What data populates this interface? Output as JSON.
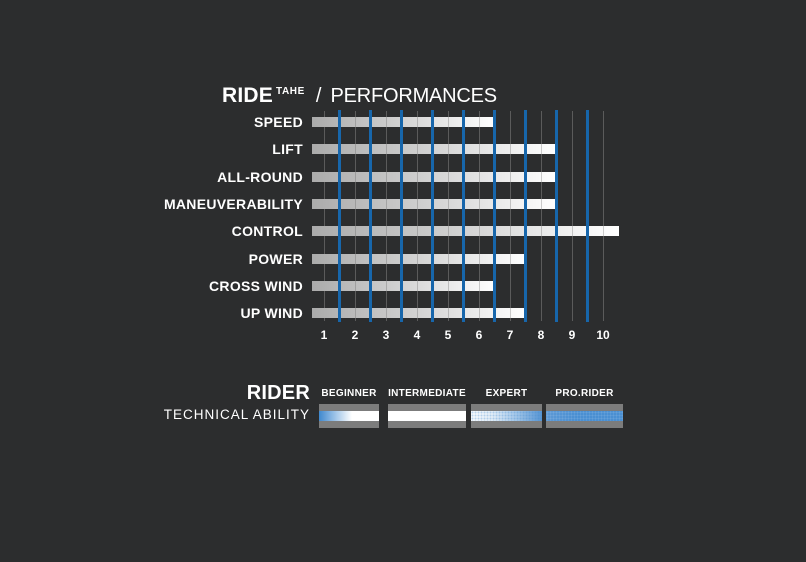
{
  "colors": {
    "background": "#2c2d2e",
    "text": "#ffffff",
    "grid_gray": "#5b5b5b",
    "grid_blue": "#1766ab",
    "bar_gradient_start": "#ababab",
    "bar_gradient_end": "#ffffff",
    "ability_block_gray": "#7c7c7c",
    "ability_blue": "#4a8fd2"
  },
  "header": {
    "brand": "RIDE",
    "brand_sup": "TAHE",
    "separator": "/",
    "section": "PERFORMANCES"
  },
  "chart_data": [
    {
      "type": "bar",
      "orientation": "horizontal",
      "title": "RIDE TAHE / PERFORMANCES",
      "categories": [
        "SPEED",
        "LIFT",
        "ALL-ROUND",
        "MANEUVERABILITY",
        "CONTROL",
        "POWER",
        "CROSS WIND",
        "UP WIND"
      ],
      "values": [
        6,
        8,
        8,
        8,
        10,
        7,
        6,
        7
      ],
      "xlabel": "",
      "ylabel": "",
      "x_ticks": [
        1,
        2,
        3,
        4,
        5,
        6,
        7,
        8,
        9,
        10
      ],
      "xlim": [
        0.5,
        10.5
      ],
      "scale_max": 10,
      "grid": "vertical only: thin gray lines at integer ticks, thick blue lines at half-step cell boundaries (1.5 to 9.5)",
      "legend": "none",
      "bar_style": "silver-to-white gradient segmented by gridlines"
    },
    {
      "type": "gradient-scale",
      "title": "RIDER TECHNICAL ABILITY",
      "categories": [
        "BEGINNER",
        "INTERMEDIATE",
        "EXPERT",
        "PRO.RIDER"
      ],
      "gradient": "solid blue at far beginner edge fading to white, white through intermediate, halftone fade back to solid blue across expert and pro.rider",
      "legend_position": "labels above blocks"
    }
  ],
  "rider_section": {
    "title": "RIDER",
    "subtitle": "TECHNICAL ABILITY"
  }
}
